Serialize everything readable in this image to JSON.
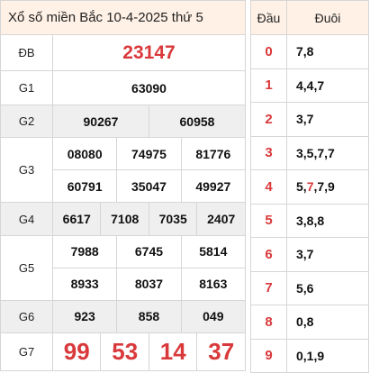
{
  "title": "Xổ số miền Bắc 10-4-2025 thứ 5",
  "prizes": {
    "db": {
      "label": "ĐB",
      "value": "23147"
    },
    "g1": {
      "label": "G1",
      "value": "63090"
    },
    "g2": {
      "label": "G2",
      "values": [
        "90267",
        "60958"
      ]
    },
    "g3": {
      "label": "G3",
      "values": [
        "08080",
        "74975",
        "81776",
        "60791",
        "35047",
        "49927"
      ]
    },
    "g4": {
      "label": "G4",
      "values": [
        "6617",
        "7108",
        "7035",
        "2407"
      ]
    },
    "g5": {
      "label": "G5",
      "values": [
        "7988",
        "6745",
        "5814",
        "8933",
        "8037",
        "8163"
      ]
    },
    "g6": {
      "label": "G6",
      "values": [
        "923",
        "858",
        "049"
      ]
    },
    "g7": {
      "label": "G7",
      "values": [
        "99",
        "53",
        "14",
        "37"
      ]
    }
  },
  "head_tail": {
    "head_label": "Đầu",
    "tail_label": "Đuôi",
    "rows": [
      {
        "head": "0",
        "tail": "7,8"
      },
      {
        "head": "1",
        "tail": "4,4,7"
      },
      {
        "head": "2",
        "tail": "3,7"
      },
      {
        "head": "3",
        "tail": "3,5,7,7"
      },
      {
        "head": "4",
        "tail_parts": [
          "5,",
          "7",
          ",7,9"
        ]
      },
      {
        "head": "5",
        "tail": "3,8,8"
      },
      {
        "head": "6",
        "tail": "3,7"
      },
      {
        "head": "7",
        "tail": "5,6"
      },
      {
        "head": "8",
        "tail": "0,8"
      },
      {
        "head": "9",
        "tail": "0,1,9"
      }
    ]
  },
  "colors": {
    "accent_red": "#d9393b",
    "header_bg": "#fff1e6",
    "shade_bg": "#efefef"
  }
}
